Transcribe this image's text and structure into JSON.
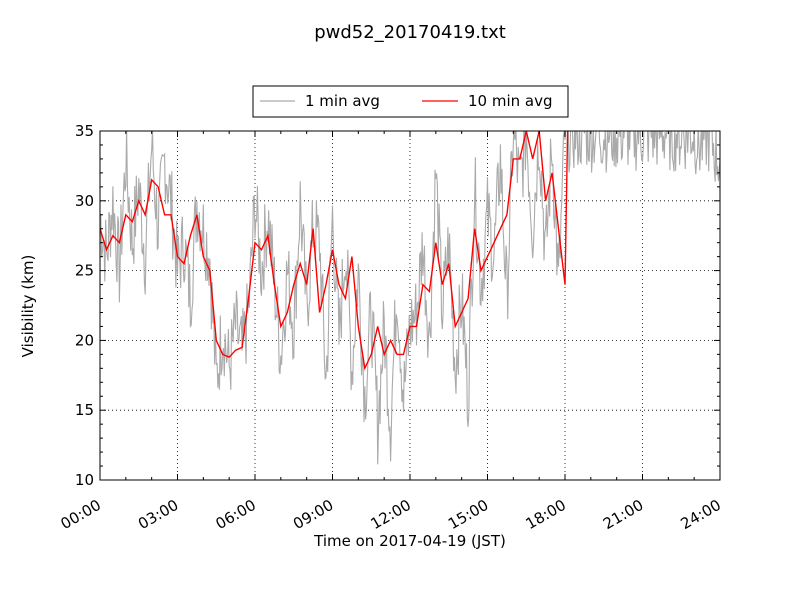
{
  "chart_data": {
    "type": "line",
    "title": "pwd52_20170419.txt",
    "xlabel": "Time on 2017-04-19 (JST)",
    "ylabel": "Visibility (km)",
    "xlim": [
      "00:00",
      "24:00"
    ],
    "ylim": [
      10,
      35
    ],
    "x_ticks": [
      "00:00",
      "03:00",
      "06:00",
      "09:00",
      "12:00",
      "15:00",
      "18:00",
      "21:00",
      "24:00"
    ],
    "y_ticks": [
      10,
      15,
      20,
      25,
      30,
      35
    ],
    "grid": true,
    "legend_position": "top-center, above plot",
    "colors": {
      "one_min": "#aaaaaa",
      "ten_min": "#ff0000"
    },
    "series": [
      {
        "name": "1 min avg",
        "hours": [
          0,
          0.25,
          0.5,
          0.75,
          1,
          1.25,
          1.5,
          1.75,
          2,
          2.25,
          2.5,
          2.75,
          3,
          3.25,
          3.5,
          3.75,
          4,
          4.25,
          4.5,
          4.75,
          5,
          5.25,
          5.5,
          5.75,
          6,
          6.25,
          6.5,
          6.75,
          7,
          7.25,
          7.5,
          7.75,
          8,
          8.25,
          8.5,
          8.75,
          9,
          9.25,
          9.5,
          9.75,
          10,
          10.25,
          10.5,
          10.75,
          11,
          11.25,
          11.5,
          11.75,
          12,
          12.25,
          12.5,
          12.75,
          13,
          13.25,
          13.5,
          13.75,
          14,
          14.25,
          14.5,
          14.75,
          15,
          15.25,
          15.5,
          15.75,
          16,
          16.25,
          16.5,
          16.75,
          17,
          17.25,
          17.5,
          17.75,
          18,
          18.25,
          18.5,
          18.75,
          19,
          19.25,
          19.5,
          19.75,
          20,
          20.25,
          20.5,
          20.75,
          21,
          21.25,
          21.5,
          21.75,
          22,
          22.25,
          22.5,
          22.75,
          23,
          23.25,
          23.5,
          23.75,
          24
        ],
        "values": [
          29,
          26,
          30,
          25,
          33,
          27,
          31,
          26,
          34,
          28,
          33,
          30,
          25,
          27,
          23,
          30,
          28,
          26,
          17,
          21,
          18,
          21,
          19,
          22,
          30,
          25,
          29,
          24,
          19,
          25,
          21,
          30,
          22,
          28,
          27,
          17,
          29,
          20,
          27,
          18,
          25,
          16,
          22,
          14,
          21,
          14,
          24,
          16,
          21,
          22,
          27,
          20,
          32,
          22,
          27,
          18,
          23,
          16,
          31,
          24,
          29,
          26,
          33,
          23,
          35,
          31,
          35,
          28,
          35,
          26,
          34,
          24,
          35,
          35,
          35,
          35,
          35,
          35,
          35,
          35,
          35,
          35,
          35,
          35,
          35,
          35,
          35,
          35,
          35,
          35,
          35,
          35,
          35,
          34,
          35,
          34,
          33
        ]
      },
      {
        "name": "10 min avg",
        "hours": [
          0,
          0.25,
          0.5,
          0.75,
          1,
          1.25,
          1.5,
          1.75,
          2,
          2.25,
          2.5,
          2.75,
          3,
          3.25,
          3.5,
          3.75,
          4,
          4.25,
          4.5,
          4.75,
          5,
          5.25,
          5.5,
          5.75,
          6,
          6.25,
          6.5,
          6.75,
          7,
          7.25,
          7.5,
          7.75,
          8,
          8.25,
          8.5,
          8.75,
          9,
          9.25,
          9.5,
          9.75,
          10,
          10.25,
          10.5,
          10.75,
          11,
          11.25,
          11.5,
          11.75,
          12,
          12.25,
          12.5,
          12.75,
          13,
          13.25,
          13.5,
          13.75,
          14,
          14.25,
          14.5,
          14.75,
          15,
          15.25,
          15.5,
          15.75,
          16,
          16.25,
          16.5,
          16.75,
          17,
          17.25,
          17.5,
          17.75,
          18,
          18.1
        ],
        "values": [
          28,
          26.5,
          27.5,
          27,
          29,
          28.5,
          30,
          29,
          31.5,
          31,
          29,
          29,
          26,
          25.5,
          27.5,
          29,
          26,
          25,
          20,
          19,
          18.8,
          19.3,
          19.5,
          23,
          27,
          26.5,
          27.5,
          24,
          21,
          22,
          24,
          25.5,
          24,
          28,
          22,
          24,
          26.5,
          24,
          23,
          26,
          21,
          18,
          19,
          21,
          19,
          20,
          19,
          19,
          21,
          21,
          24,
          23.5,
          27,
          24,
          25.5,
          21,
          22,
          23,
          28,
          25,
          26,
          27,
          28,
          29,
          33,
          33,
          35,
          33,
          35,
          30,
          32,
          28,
          24,
          35
        ]
      }
    ]
  }
}
